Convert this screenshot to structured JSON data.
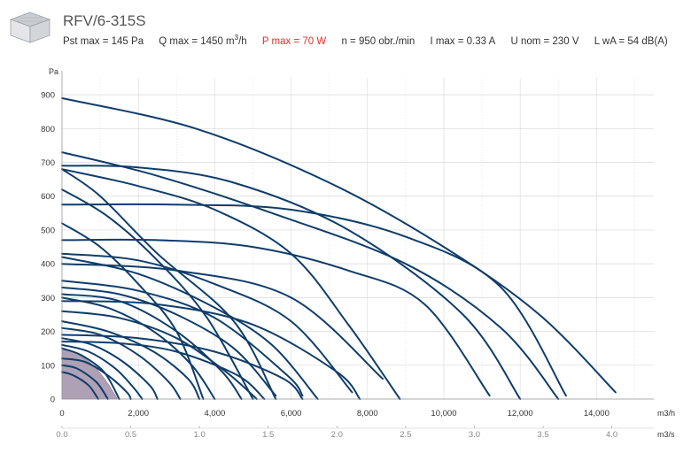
{
  "header": {
    "title": "RFV/6-315S",
    "specs": {
      "pst_max": "Pst max = 145 Pa",
      "q_max": "Q max = 1450 m",
      "q_max_unit": "3",
      "q_max_suffix": "/h",
      "p_max": "P max = 70 W",
      "n": "n = 950 obr./min",
      "i_max": "I max = 0.33 A",
      "u_nom": "U nom = 230 V",
      "lwa": "L wA = 54 dB(A)"
    }
  },
  "colors": {
    "curve": "#0f3d6b",
    "active_area": "#a08fa8",
    "grid": "#d8d8d8"
  },
  "chart_data": {
    "type": "line",
    "title": "RFV/6-315S",
    "ylabel": "Pa",
    "xlabel": "m3/h",
    "xlabel_secondary": "m3/s",
    "xlim": [
      0,
      15500
    ],
    "ylim": [
      0,
      950
    ],
    "x_ticks": [
      0,
      2000,
      4000,
      6000,
      8000,
      10000,
      12000,
      14000
    ],
    "x_tick_labels": [
      "0",
      "2,000",
      "4,000",
      "6,000",
      "8,000",
      "10,000",
      "12,000",
      "14,000"
    ],
    "x2_ticks": [
      0.0,
      0.5,
      1.0,
      1.5,
      2.0,
      2.5,
      3.0,
      3.5,
      4.0
    ],
    "x2_tick_labels": [
      "0.0",
      "0.5",
      "1.0",
      "1.5",
      "2.0",
      "2.5",
      "3.0",
      "3.5",
      "4.0"
    ],
    "y_ticks": [
      0,
      100,
      200,
      300,
      400,
      500,
      600,
      700,
      800,
      900
    ],
    "grid": true,
    "active_fan": {
      "name": "RFV/6-315S",
      "pst_max": 145,
      "q_max": 1450
    },
    "series": [
      {
        "values": [
          [
            0,
            890
          ],
          [
            3500,
            800
          ],
          [
            7000,
            640
          ],
          [
            10000,
            450
          ],
          [
            12500,
            250
          ],
          [
            14500,
            20
          ]
        ]
      },
      {
        "values": [
          [
            0,
            730
          ],
          [
            2500,
            660
          ],
          [
            5500,
            550
          ],
          [
            9000,
            400
          ],
          [
            11500,
            210
          ],
          [
            13000,
            0
          ]
        ]
      },
      {
        "values": [
          [
            0,
            690
          ],
          [
            2000,
            685
          ],
          [
            4500,
            640
          ],
          [
            7500,
            500
          ],
          [
            10500,
            250
          ],
          [
            12000,
            0
          ]
        ]
      },
      {
        "values": [
          [
            0,
            680
          ],
          [
            2000,
            630
          ],
          [
            4000,
            560
          ],
          [
            6000,
            430
          ],
          [
            7500,
            220
          ],
          [
            8850,
            0
          ]
        ]
      },
      {
        "values": [
          [
            0,
            575
          ],
          [
            3000,
            575
          ],
          [
            6000,
            560
          ],
          [
            9000,
            480
          ],
          [
            11500,
            330
          ],
          [
            13200,
            10
          ]
        ]
      },
      {
        "values": [
          [
            0,
            470
          ],
          [
            2500,
            470
          ],
          [
            5000,
            450
          ],
          [
            7500,
            380
          ],
          [
            9500,
            280
          ],
          [
            11200,
            10
          ]
        ]
      },
      {
        "values": [
          [
            0,
            620
          ],
          [
            1200,
            540
          ],
          [
            2500,
            410
          ],
          [
            3800,
            240
          ],
          [
            5000,
            0
          ]
        ]
      },
      {
        "values": [
          [
            0,
            520
          ],
          [
            1000,
            450
          ],
          [
            2000,
            340
          ],
          [
            3000,
            200
          ],
          [
            3700,
            0
          ]
        ]
      },
      {
        "values": [
          [
            0,
            680
          ],
          [
            1000,
            600
          ],
          [
            2500,
            430
          ],
          [
            4500,
            230
          ],
          [
            5600,
            0
          ]
        ]
      },
      {
        "values": [
          [
            0,
            430
          ],
          [
            2000,
            410
          ],
          [
            4000,
            340
          ],
          [
            6000,
            230
          ],
          [
            7600,
            20
          ]
        ]
      },
      {
        "values": [
          [
            0,
            420
          ],
          [
            2000,
            370
          ],
          [
            4000,
            270
          ],
          [
            5500,
            160
          ],
          [
            6700,
            0
          ]
        ]
      },
      {
        "values": [
          [
            0,
            400
          ],
          [
            3000,
            380
          ],
          [
            6000,
            300
          ],
          [
            8400,
            60
          ]
        ]
      },
      {
        "values": [
          [
            0,
            350
          ],
          [
            2000,
            320
          ],
          [
            4000,
            240
          ],
          [
            5900,
            70
          ],
          [
            6300,
            10
          ]
        ]
      },
      {
        "values": [
          [
            0,
            330
          ],
          [
            1500,
            310
          ],
          [
            3000,
            250
          ],
          [
            4500,
            150
          ],
          [
            5600,
            10
          ]
        ]
      },
      {
        "values": [
          [
            0,
            310
          ],
          [
            1500,
            290
          ],
          [
            3000,
            200
          ],
          [
            4200,
            80
          ],
          [
            4700,
            0
          ]
        ]
      },
      {
        "values": [
          [
            0,
            300
          ],
          [
            1200,
            270
          ],
          [
            2400,
            200
          ],
          [
            3400,
            100
          ],
          [
            4000,
            0
          ]
        ]
      },
      {
        "values": [
          [
            0,
            290
          ],
          [
            2500,
            280
          ],
          [
            5000,
            220
          ],
          [
            7200,
            80
          ],
          [
            7800,
            0
          ]
        ]
      },
      {
        "values": [
          [
            0,
            260
          ],
          [
            1500,
            240
          ],
          [
            3000,
            180
          ],
          [
            4300,
            80
          ],
          [
            5100,
            0
          ]
        ]
      },
      {
        "values": [
          [
            0,
            230
          ],
          [
            1200,
            200
          ],
          [
            2400,
            140
          ],
          [
            3300,
            60
          ],
          [
            3600,
            0
          ]
        ]
      },
      {
        "values": [
          [
            0,
            210
          ],
          [
            1000,
            190
          ],
          [
            2000,
            130
          ],
          [
            2800,
            50
          ],
          [
            3100,
            0
          ]
        ]
      },
      {
        "values": [
          [
            0,
            190
          ],
          [
            2000,
            180
          ],
          [
            4000,
            140
          ],
          [
            5800,
            60
          ],
          [
            6300,
            0
          ]
        ]
      },
      {
        "values": [
          [
            0,
            180
          ],
          [
            800,
            160
          ],
          [
            1600,
            110
          ],
          [
            2300,
            40
          ],
          [
            2500,
            0
          ]
        ]
      },
      {
        "values": [
          [
            0,
            170
          ],
          [
            1500,
            165
          ],
          [
            3000,
            140
          ],
          [
            4600,
            70
          ],
          [
            5300,
            0
          ]
        ]
      },
      {
        "values": [
          [
            0,
            160
          ],
          [
            700,
            140
          ],
          [
            1400,
            90
          ],
          [
            1900,
            30
          ],
          [
            2100,
            0
          ]
        ]
      },
      {
        "values": [
          [
            0,
            150
          ],
          [
            500,
            130
          ],
          [
            1100,
            80
          ],
          [
            1500,
            0
          ]
        ]
      },
      {
        "values": [
          [
            0,
            120
          ],
          [
            600,
            110
          ],
          [
            1200,
            70
          ],
          [
            1700,
            20
          ],
          [
            1800,
            0
          ]
        ]
      },
      {
        "values": [
          [
            0,
            100
          ],
          [
            400,
            90
          ],
          [
            900,
            50
          ],
          [
            1200,
            0
          ]
        ]
      },
      {
        "values": [
          [
            0,
            80
          ],
          [
            300,
            70
          ],
          [
            700,
            40
          ],
          [
            950,
            0
          ]
        ]
      }
    ]
  }
}
